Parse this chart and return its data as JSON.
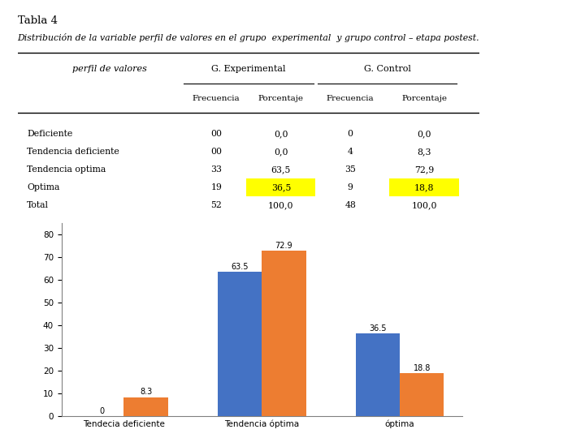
{
  "title": "Tabla 4",
  "subtitle": "Distribución de la variable perfil de valores en el grupo  experimental  y grupo control – etapa postest.",
  "table": {
    "rows": [
      [
        "Deficiente",
        "00",
        "0,0",
        "0",
        "0,0"
      ],
      [
        "Tendencia deficiente",
        "00",
        "0,0",
        "4",
        "8,3"
      ],
      [
        "Tendencia optima",
        "33",
        "63,5",
        "35",
        "72,9"
      ],
      [
        "Optima",
        "19",
        "36,5",
        "9",
        "18,8"
      ],
      [
        "Total",
        "52",
        "100,0",
        "48",
        "100,0"
      ]
    ],
    "highlight_rows": [
      3
    ],
    "highlight_cols": [
      2,
      4
    ],
    "highlight_color": "#FFFF00"
  },
  "chart": {
    "categories": [
      "Tendecia deficiente",
      "Tendencia óptima",
      "óptima"
    ],
    "experimental": [
      0,
      63.5,
      36.5
    ],
    "control": [
      8.3,
      72.9,
      18.8
    ],
    "exp_color": "#4472C4",
    "ctrl_color": "#ED7D31",
    "ylim": [
      0,
      85
    ],
    "yticks": [
      0,
      10,
      20,
      30,
      40,
      50,
      60,
      70,
      80
    ],
    "legend_exp": "G. Experimental",
    "legend_ctrl": "G. Control",
    "bar_labels_exp": [
      "0",
      "63.5",
      "36.5"
    ],
    "bar_labels_ctrl": [
      "8.3",
      "72.9",
      "18.8"
    ],
    "chart_bg": "#EBEBEB"
  },
  "bg_color": "#FFFFFF",
  "right_panel_top": "#6B6045",
  "right_panel_mid": "#B8B49A",
  "right_panel_bot": "#6B6045"
}
